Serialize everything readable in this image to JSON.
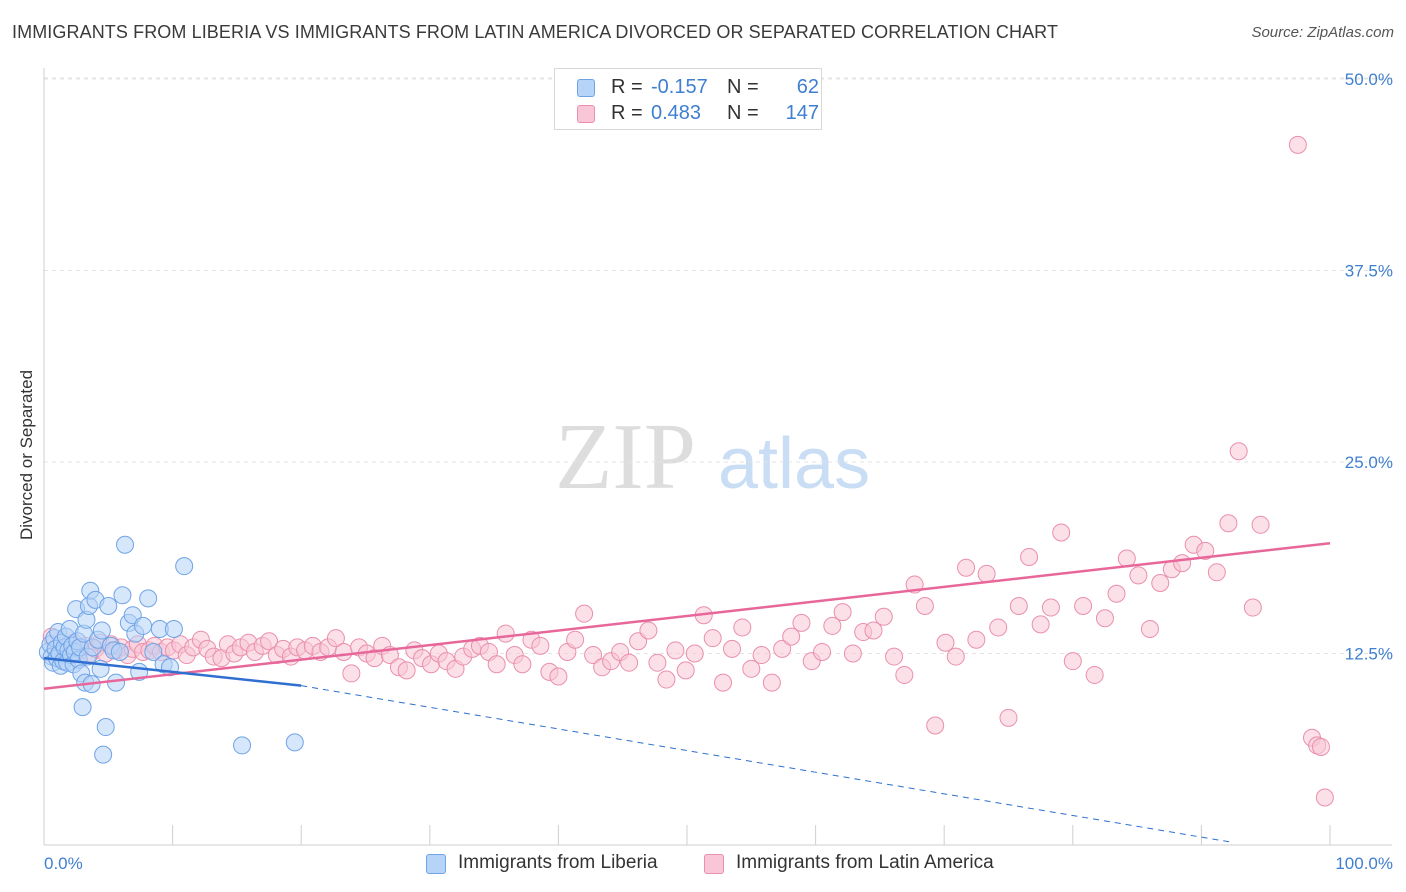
{
  "title": "IMMIGRANTS FROM LIBERIA VS IMMIGRANTS FROM LATIN AMERICA DIVORCED OR SEPARATED CORRELATION CHART",
  "source": "Source: ZipAtlas.com",
  "watermark": {
    "zip": "ZIP",
    "atlas": "atlas"
  },
  "legend": {
    "r_label": "R =",
    "n_label": "N =",
    "series": [
      {
        "name": "Immigrants from Liberia",
        "r": "-0.157",
        "n": "62",
        "fill": "#b6d4f7",
        "stroke": "#6fa3e6"
      },
      {
        "name": "Immigrants from Latin America",
        "r": "0.483",
        "n": "147",
        "fill": "#f8c6d6",
        "stroke": "#ea8fae"
      }
    ]
  },
  "chart_data": {
    "type": "scatter",
    "title": "IMMIGRANTS FROM LIBERIA VS IMMIGRANTS FROM LATIN AMERICA DIVORCED OR SEPARATED CORRELATION CHART",
    "xlabel": "",
    "ylabel": "Divorced or Separated",
    "xlim": [
      0,
      100
    ],
    "ylim": [
      0,
      52
    ],
    "x_tick_labels": [
      "0.0%",
      "100.0%"
    ],
    "y_ticks": [
      12.5,
      25.0,
      37.5,
      50.0
    ],
    "y_tick_labels": [
      "12.5%",
      "25.0%",
      "37.5%",
      "50.0%"
    ],
    "grid": "horizontal dashed",
    "legend_position": "top-center",
    "colors": {
      "liberia": "#6fa3e6",
      "liberia_line": "#2f6fd0",
      "latin": "#ea8fae",
      "latin_line": "#e8679a",
      "tick_text": "#3f7fd0"
    },
    "series": [
      {
        "name": "Immigrants from Liberia",
        "r": -0.157,
        "n": 62,
        "trend": {
          "x": [
            0,
            20
          ],
          "y": [
            12.2,
            10.4
          ],
          "extended_to": [
            100,
            0.2
          ]
        },
        "points": [
          [
            0.3,
            12.6
          ],
          [
            0.5,
            13.1
          ],
          [
            0.6,
            12.3
          ],
          [
            0.7,
            11.9
          ],
          [
            0.8,
            13.5
          ],
          [
            0.9,
            12.8
          ],
          [
            1.0,
            12.2
          ],
          [
            1.1,
            13.9
          ],
          [
            1.2,
            12.5
          ],
          [
            1.3,
            11.7
          ],
          [
            1.4,
            13.2
          ],
          [
            1.5,
            12.0
          ],
          [
            1.6,
            12.9
          ],
          [
            1.7,
            13.6
          ],
          [
            1.8,
            11.9
          ],
          [
            1.9,
            12.7
          ],
          [
            2.0,
            14.1
          ],
          [
            2.1,
            12.4
          ],
          [
            2.2,
            13.0
          ],
          [
            2.3,
            11.8
          ],
          [
            2.4,
            12.6
          ],
          [
            2.5,
            15.4
          ],
          [
            2.6,
            13.3
          ],
          [
            2.7,
            12.1
          ],
          [
            2.8,
            12.9
          ],
          [
            2.9,
            11.2
          ],
          [
            3.0,
            9.0
          ],
          [
            3.1,
            13.8
          ],
          [
            3.2,
            10.6
          ],
          [
            3.3,
            14.7
          ],
          [
            3.4,
            12.3
          ],
          [
            3.5,
            15.6
          ],
          [
            3.6,
            16.6
          ],
          [
            3.7,
            10.5
          ],
          [
            3.8,
            12.9
          ],
          [
            4.0,
            16.0
          ],
          [
            4.2,
            13.4
          ],
          [
            4.4,
            11.5
          ],
          [
            4.5,
            14.0
          ],
          [
            4.6,
            5.9
          ],
          [
            4.8,
            7.7
          ],
          [
            5.0,
            15.6
          ],
          [
            5.2,
            13.0
          ],
          [
            5.4,
            12.7
          ],
          [
            5.6,
            10.6
          ],
          [
            5.9,
            12.6
          ],
          [
            6.1,
            16.3
          ],
          [
            6.3,
            19.6
          ],
          [
            6.6,
            14.5
          ],
          [
            6.9,
            15.0
          ],
          [
            7.1,
            13.8
          ],
          [
            7.4,
            11.3
          ],
          [
            7.7,
            14.3
          ],
          [
            8.1,
            16.1
          ],
          [
            8.5,
            12.6
          ],
          [
            9.0,
            14.1
          ],
          [
            9.3,
            11.8
          ],
          [
            9.8,
            11.6
          ],
          [
            10.1,
            14.1
          ],
          [
            10.9,
            18.2
          ],
          [
            15.4,
            6.5
          ],
          [
            19.5,
            6.7
          ]
        ]
      },
      {
        "name": "Immigrants from Latin America",
        "r": 0.483,
        "n": 147,
        "trend": {
          "x": [
            0,
            100
          ],
          "y": [
            10.2,
            19.7
          ]
        },
        "points": [
          [
            0.6,
            13.6
          ],
          [
            1.0,
            12.8
          ],
          [
            1.5,
            12.6
          ],
          [
            1.9,
            12.9
          ],
          [
            2.3,
            13.2
          ],
          [
            2.8,
            12.7
          ],
          [
            3.2,
            13.0
          ],
          [
            3.6,
            12.5
          ],
          [
            4.0,
            12.8
          ],
          [
            4.4,
            13.2
          ],
          [
            4.8,
            12.5
          ],
          [
            5.2,
            13.1
          ],
          [
            5.6,
            12.7
          ],
          [
            6.0,
            12.9
          ],
          [
            6.5,
            12.4
          ],
          [
            6.9,
            12.8
          ],
          [
            7.3,
            13.1
          ],
          [
            7.7,
            12.6
          ],
          [
            8.2,
            12.7
          ],
          [
            8.6,
            13.0
          ],
          [
            9.1,
            12.6
          ],
          [
            9.6,
            12.9
          ],
          [
            10.1,
            12.7
          ],
          [
            10.6,
            13.1
          ],
          [
            11.1,
            12.4
          ],
          [
            11.6,
            12.9
          ],
          [
            12.2,
            13.4
          ],
          [
            12.7,
            12.8
          ],
          [
            13.2,
            12.3
          ],
          [
            13.8,
            12.2
          ],
          [
            14.3,
            13.1
          ],
          [
            14.8,
            12.5
          ],
          [
            15.3,
            12.9
          ],
          [
            15.9,
            13.2
          ],
          [
            16.4,
            12.6
          ],
          [
            17.0,
            13.0
          ],
          [
            17.5,
            13.3
          ],
          [
            18.1,
            12.4
          ],
          [
            18.6,
            12.8
          ],
          [
            19.2,
            12.3
          ],
          [
            19.7,
            12.9
          ],
          [
            20.3,
            12.7
          ],
          [
            20.9,
            13.0
          ],
          [
            21.5,
            12.6
          ],
          [
            22.1,
            12.9
          ],
          [
            22.7,
            13.5
          ],
          [
            23.3,
            12.6
          ],
          [
            23.9,
            11.2
          ],
          [
            24.5,
            12.9
          ],
          [
            25.1,
            12.5
          ],
          [
            25.7,
            12.2
          ],
          [
            26.3,
            13.0
          ],
          [
            26.9,
            12.4
          ],
          [
            27.6,
            11.6
          ],
          [
            28.2,
            11.4
          ],
          [
            28.8,
            12.7
          ],
          [
            29.4,
            12.2
          ],
          [
            30.1,
            11.8
          ],
          [
            30.7,
            12.5
          ],
          [
            31.3,
            12.0
          ],
          [
            32.0,
            11.5
          ],
          [
            32.6,
            12.3
          ],
          [
            33.3,
            12.8
          ],
          [
            33.9,
            13.0
          ],
          [
            34.6,
            12.6
          ],
          [
            35.2,
            11.8
          ],
          [
            35.9,
            13.8
          ],
          [
            36.6,
            12.4
          ],
          [
            37.2,
            11.8
          ],
          [
            37.9,
            13.4
          ],
          [
            38.6,
            13.0
          ],
          [
            39.3,
            11.3
          ],
          [
            40.0,
            11.0
          ],
          [
            40.7,
            12.6
          ],
          [
            41.3,
            13.4
          ],
          [
            42.0,
            15.1
          ],
          [
            42.7,
            12.4
          ],
          [
            43.4,
            11.6
          ],
          [
            44.1,
            12.0
          ],
          [
            44.8,
            12.6
          ],
          [
            45.5,
            11.9
          ],
          [
            46.2,
            13.3
          ],
          [
            47.0,
            14.0
          ],
          [
            47.7,
            11.9
          ],
          [
            48.4,
            10.8
          ],
          [
            49.1,
            12.7
          ],
          [
            49.9,
            11.4
          ],
          [
            50.6,
            12.5
          ],
          [
            51.3,
            15.0
          ],
          [
            52.0,
            13.5
          ],
          [
            52.8,
            10.6
          ],
          [
            53.5,
            12.8
          ],
          [
            54.3,
            14.2
          ],
          [
            55.0,
            11.5
          ],
          [
            55.8,
            12.4
          ],
          [
            56.6,
            10.6
          ],
          [
            57.4,
            12.8
          ],
          [
            58.1,
            13.6
          ],
          [
            58.9,
            14.5
          ],
          [
            59.7,
            12.0
          ],
          [
            60.5,
            12.6
          ],
          [
            61.3,
            14.3
          ],
          [
            62.1,
            15.2
          ],
          [
            62.9,
            12.5
          ],
          [
            63.7,
            13.9
          ],
          [
            64.5,
            14.0
          ],
          [
            65.3,
            14.9
          ],
          [
            66.1,
            12.3
          ],
          [
            66.9,
            11.1
          ],
          [
            67.7,
            17.0
          ],
          [
            68.5,
            15.6
          ],
          [
            69.3,
            7.8
          ],
          [
            70.1,
            13.2
          ],
          [
            70.9,
            12.3
          ],
          [
            71.7,
            18.1
          ],
          [
            72.5,
            13.4
          ],
          [
            73.3,
            17.7
          ],
          [
            74.2,
            14.2
          ],
          [
            75.0,
            8.3
          ],
          [
            75.8,
            15.6
          ],
          [
            76.6,
            18.8
          ],
          [
            77.5,
            14.4
          ],
          [
            78.3,
            15.5
          ],
          [
            79.1,
            20.4
          ],
          [
            80.0,
            12.0
          ],
          [
            80.8,
            15.6
          ],
          [
            81.7,
            11.1
          ],
          [
            82.5,
            14.8
          ],
          [
            83.4,
            16.4
          ],
          [
            84.2,
            18.7
          ],
          [
            85.1,
            17.6
          ],
          [
            86.0,
            14.1
          ],
          [
            86.8,
            17.1
          ],
          [
            87.7,
            18.0
          ],
          [
            88.5,
            18.4
          ],
          [
            89.4,
            19.6
          ],
          [
            90.3,
            19.2
          ],
          [
            91.2,
            17.8
          ],
          [
            92.1,
            21.0
          ],
          [
            92.9,
            25.7
          ],
          [
            94.0,
            15.5
          ],
          [
            94.6,
            20.9
          ],
          [
            97.5,
            45.7
          ],
          [
            98.6,
            7.0
          ],
          [
            99.0,
            6.5
          ],
          [
            99.3,
            6.4
          ],
          [
            99.6,
            3.1
          ]
        ]
      }
    ]
  }
}
